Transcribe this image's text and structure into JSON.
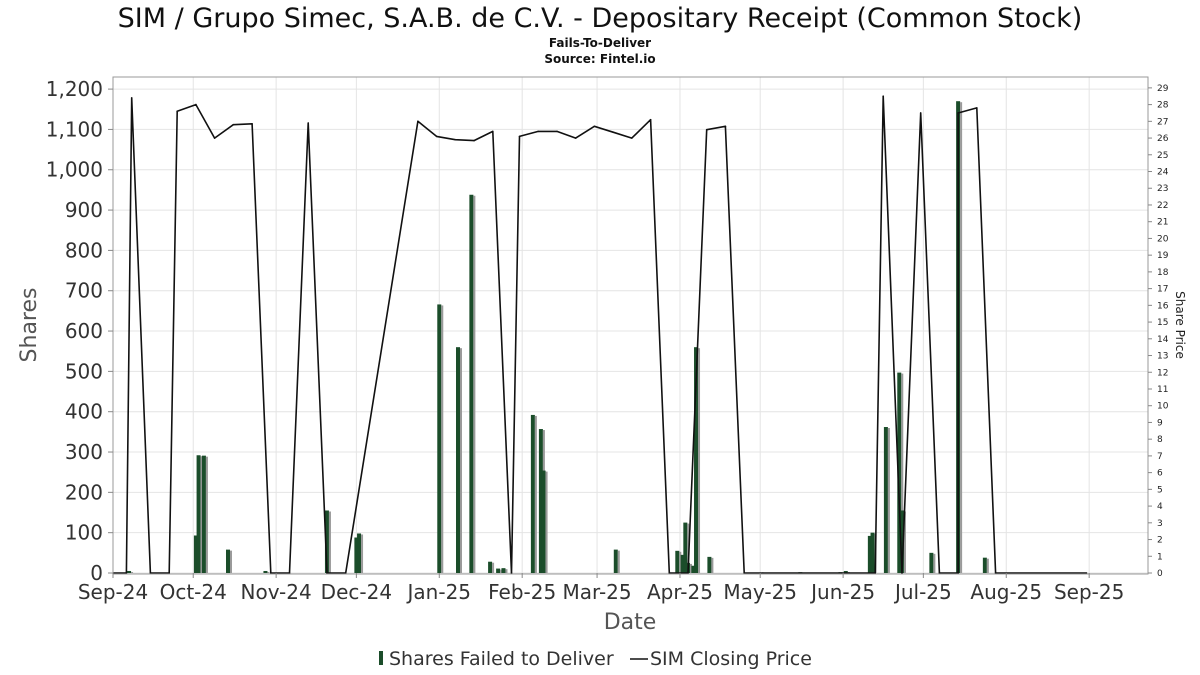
{
  "chart_data": {
    "type": "bar",
    "title": "SIM / Grupo Simec, S.A.B. de C.V. - Depositary Receipt (Common Stock)",
    "subtitle": "Fails-To-Deliver",
    "source": "Source: Fintel.io",
    "xlabel": "Date",
    "ylabel": "Shares",
    "y2label": "Share Price",
    "ylim": [
      0,
      1230
    ],
    "y2lim": [
      0,
      29.65
    ],
    "yticks": [
      "0",
      "100",
      "200",
      "300",
      "400",
      "500",
      "600",
      "700",
      "800",
      "900",
      "1,000",
      "1,100",
      "1,200"
    ],
    "ytick_values": [
      0,
      100,
      200,
      300,
      400,
      500,
      600,
      700,
      800,
      900,
      1000,
      1100,
      1200
    ],
    "y2ticks": [
      "0",
      "1",
      "2",
      "3",
      "4",
      "5",
      "6",
      "7",
      "8",
      "9",
      "10",
      "11",
      "12",
      "13",
      "14",
      "15",
      "16",
      "17",
      "18",
      "19",
      "20",
      "21",
      "22",
      "23",
      "24",
      "25",
      "26",
      "27",
      "28",
      "29"
    ],
    "xlim": [
      "2024-09-01",
      "2025-09-23"
    ],
    "xticks": [
      {
        "label": "Sep-24",
        "date": "2024-09-01"
      },
      {
        "label": "Oct-24",
        "date": "2024-10-01"
      },
      {
        "label": "Nov-24",
        "date": "2024-11-01"
      },
      {
        "label": "Dec-24",
        "date": "2024-12-01"
      },
      {
        "label": "Jan-25",
        "date": "2025-01-01"
      },
      {
        "label": "Feb-25",
        "date": "2025-02-01"
      },
      {
        "label": "Mar-25",
        "date": "2025-03-01"
      },
      {
        "label": "Apr-25",
        "date": "2025-04-01"
      },
      {
        "label": "May-25",
        "date": "2025-05-01"
      },
      {
        "label": "Jun-25",
        "date": "2025-06-01"
      },
      {
        "label": "Jul-25",
        "date": "2025-07-01"
      },
      {
        "label": "Aug-25",
        "date": "2025-08-01"
      },
      {
        "label": "Sep-25",
        "date": "2025-09-01"
      }
    ],
    "grid": true,
    "legend_position": "bottom",
    "series": [
      {
        "name": "Shares Failed to Deliver",
        "type": "bar",
        "axis": "left",
        "color": "#1b4d2a",
        "points": [
          {
            "date": "2024-09-07",
            "value": 5
          },
          {
            "date": "2024-10-02",
            "value": 93
          },
          {
            "date": "2024-10-03",
            "value": 292
          },
          {
            "date": "2024-10-05",
            "value": 291
          },
          {
            "date": "2024-10-14",
            "value": 58
          },
          {
            "date": "2024-10-28",
            "value": 5
          },
          {
            "date": "2024-11-20",
            "value": 155
          },
          {
            "date": "2024-12-01",
            "value": 88
          },
          {
            "date": "2024-12-02",
            "value": 98
          },
          {
            "date": "2025-01-01",
            "value": 666
          },
          {
            "date": "2025-01-08",
            "value": 560
          },
          {
            "date": "2025-01-13",
            "value": 938
          },
          {
            "date": "2025-01-20",
            "value": 28
          },
          {
            "date": "2025-01-23",
            "value": 11
          },
          {
            "date": "2025-01-25",
            "value": 12
          },
          {
            "date": "2025-02-05",
            "value": 392
          },
          {
            "date": "2025-02-08",
            "value": 357
          },
          {
            "date": "2025-02-09",
            "value": 254
          },
          {
            "date": "2025-03-08",
            "value": 58
          },
          {
            "date": "2025-03-31",
            "value": 55
          },
          {
            "date": "2025-04-02",
            "value": 45
          },
          {
            "date": "2025-04-03",
            "value": 125
          },
          {
            "date": "2025-04-04",
            "value": 25
          },
          {
            "date": "2025-04-06",
            "value": 18
          },
          {
            "date": "2025-04-07",
            "value": 560
          },
          {
            "date": "2025-04-12",
            "value": 40
          },
          {
            "date": "2025-05-16",
            "value": 2
          },
          {
            "date": "2025-05-31",
            "value": 2
          },
          {
            "date": "2025-06-02",
            "value": 5
          },
          {
            "date": "2025-06-11",
            "value": 92
          },
          {
            "date": "2025-06-12",
            "value": 100
          },
          {
            "date": "2025-06-17",
            "value": 362
          },
          {
            "date": "2025-06-22",
            "value": 497
          },
          {
            "date": "2025-06-23",
            "value": 155
          },
          {
            "date": "2025-07-04",
            "value": 50
          },
          {
            "date": "2025-07-14",
            "value": 1170
          },
          {
            "date": "2025-07-24",
            "value": 38
          }
        ]
      },
      {
        "name": "SIM Closing Price",
        "type": "line",
        "axis": "right",
        "color": "#111111",
        "points": [
          {
            "date": "2024-09-01",
            "value": 0
          },
          {
            "date": "2024-09-06",
            "value": 0
          },
          {
            "date": "2024-09-08",
            "value": 28.4
          },
          {
            "date": "2024-09-15",
            "value": 0
          },
          {
            "date": "2024-09-22",
            "value": 0
          },
          {
            "date": "2024-09-25",
            "value": 27.6
          },
          {
            "date": "2024-10-02",
            "value": 28.0
          },
          {
            "date": "2024-10-09",
            "value": 26.0
          },
          {
            "date": "2024-10-16",
            "value": 26.8
          },
          {
            "date": "2024-10-23",
            "value": 26.85
          },
          {
            "date": "2024-10-30",
            "value": 0
          },
          {
            "date": "2024-11-06",
            "value": 0
          },
          {
            "date": "2024-11-13",
            "value": 26.9
          },
          {
            "date": "2024-11-20",
            "value": 0
          },
          {
            "date": "2024-11-27",
            "value": 0
          },
          {
            "date": "2024-12-24",
            "value": 27.0
          },
          {
            "date": "2024-12-31",
            "value": 26.1
          },
          {
            "date": "2025-01-07",
            "value": 25.9
          },
          {
            "date": "2025-01-14",
            "value": 25.85
          },
          {
            "date": "2025-01-21",
            "value": 26.4
          },
          {
            "date": "2025-01-28",
            "value": 0
          },
          {
            "date": "2025-01-31",
            "value": 26.1
          },
          {
            "date": "2025-02-07",
            "value": 26.4
          },
          {
            "date": "2025-02-14",
            "value": 26.4
          },
          {
            "date": "2025-02-21",
            "value": 26.0
          },
          {
            "date": "2025-02-28",
            "value": 26.7
          },
          {
            "date": "2025-03-07",
            "value": 26.35
          },
          {
            "date": "2025-03-14",
            "value": 26.0
          },
          {
            "date": "2025-03-21",
            "value": 27.1
          },
          {
            "date": "2025-03-28",
            "value": 0
          },
          {
            "date": "2025-04-04",
            "value": 0
          },
          {
            "date": "2025-04-11",
            "value": 26.5
          },
          {
            "date": "2025-04-18",
            "value": 26.7
          },
          {
            "date": "2025-04-25",
            "value": 0
          },
          {
            "date": "2025-05-02",
            "value": 0
          },
          {
            "date": "2025-06-13",
            "value": 0
          },
          {
            "date": "2025-06-16",
            "value": 28.5
          },
          {
            "date": "2025-06-23",
            "value": 0
          },
          {
            "date": "2025-06-30",
            "value": 27.5
          },
          {
            "date": "2025-07-07",
            "value": 0
          },
          {
            "date": "2025-07-14",
            "value": 0
          },
          {
            "date": "2025-07-14",
            "value": 27.5
          },
          {
            "date": "2025-07-21",
            "value": 27.8
          },
          {
            "date": "2025-07-28",
            "value": 0
          },
          {
            "date": "2025-08-31",
            "value": 0
          }
        ]
      }
    ]
  },
  "colors": {
    "bar": "#1b4d2a",
    "bar_shade": "#9a9a9a",
    "line": "#111111",
    "grid": "#e4e4e4",
    "frame": "#999999"
  }
}
